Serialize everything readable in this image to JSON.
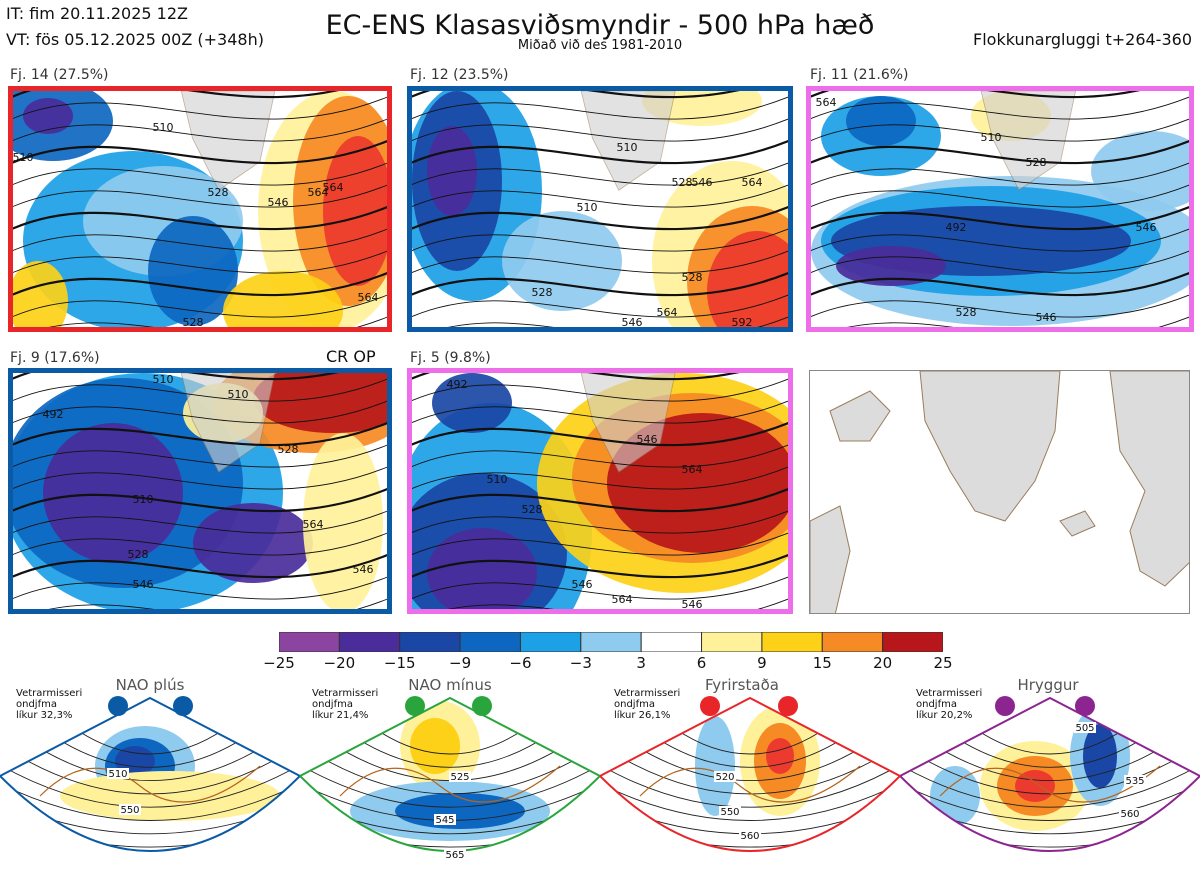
{
  "header": {
    "it": "IT: fim 20.11.2025 12Z",
    "vt": "VT: fös 05.12.2025 00Z  (+348h)",
    "title": "EC-ENS Klasasviðsmyndir - 500 hPa hæð",
    "subtitle": "Miðað við des 1981-2010",
    "window": "Flokkunargluggi t+264-360"
  },
  "panels": [
    {
      "label": "Fj. 14 (27.5%)",
      "border": "#e8262a"
    },
    {
      "label": "Fj. 12 (23.5%)",
      "border": "#0b5aa5"
    },
    {
      "label": "Fj. 11 (21.6%)",
      "border": "#ee6de8"
    },
    {
      "label": "Fj. 9 (17.6%)",
      "border": "#0b5aa5"
    },
    {
      "label": "Fj. 5 (9.8%)",
      "border": "#ee6de8"
    }
  ],
  "cr_op": "CR OP",
  "chart_data": {
    "type": "heatmap",
    "title": "EC-ENS Klasasviðsmyndir - 500 hPa hæð",
    "colorbar": {
      "ticks": [
        "−25",
        "−20",
        "−15",
        "−9",
        "−6",
        "−3",
        "3",
        "6",
        "9",
        "15",
        "20",
        "25"
      ],
      "colors": [
        "#8b44a0",
        "#4a2c9a",
        "#1a47a5",
        "#0d67c0",
        "#1ca0e6",
        "#8fcbef",
        "#ffffff",
        "#fff19a",
        "#fdd117",
        "#f68a24",
        "#ec3b2e",
        "#b7171a"
      ]
    },
    "contour_labels": [
      [
        "510",
        "528",
        "546",
        "564",
        "564",
        "564",
        "528",
        "510"
      ],
      [
        "528",
        "510",
        "510",
        "528",
        "546",
        "564",
        "528",
        "546",
        "564",
        "592"
      ],
      [
        "510",
        "528",
        "492",
        "546",
        "528",
        "546",
        "564"
      ],
      [
        "492",
        "510",
        "510",
        "510",
        "528",
        "528",
        "546",
        "564",
        "546"
      ],
      [
        "492",
        "510",
        "528",
        "546",
        "564",
        "546",
        "564",
        "546"
      ]
    ],
    "regimes": [
      {
        "name": "NAO plús",
        "note": "Vetrarmisseri\nondjfma\nlíkur 32,3%",
        "labels": [
          "510",
          "550"
        ],
        "color": "#0b5aa5"
      },
      {
        "name": "NAO mínus",
        "note": "Vetrarmisseri\nondjfma\nlíkur 21,4%",
        "labels": [
          "525",
          "545",
          "565"
        ],
        "color": "#2aa53d"
      },
      {
        "name": "Fyrirstaða",
        "note": "Vetrarmisseri\nondjfma\nlíkur 26,1%",
        "labels": [
          "520",
          "550",
          "560"
        ],
        "color": "#e8262a"
      },
      {
        "name": "Hryggur",
        "note": "Vetrarmisseri\nondjfma\nlíkur 20,2%",
        "labels": [
          "505",
          "535",
          "560"
        ],
        "color": "#8c2590"
      }
    ]
  }
}
